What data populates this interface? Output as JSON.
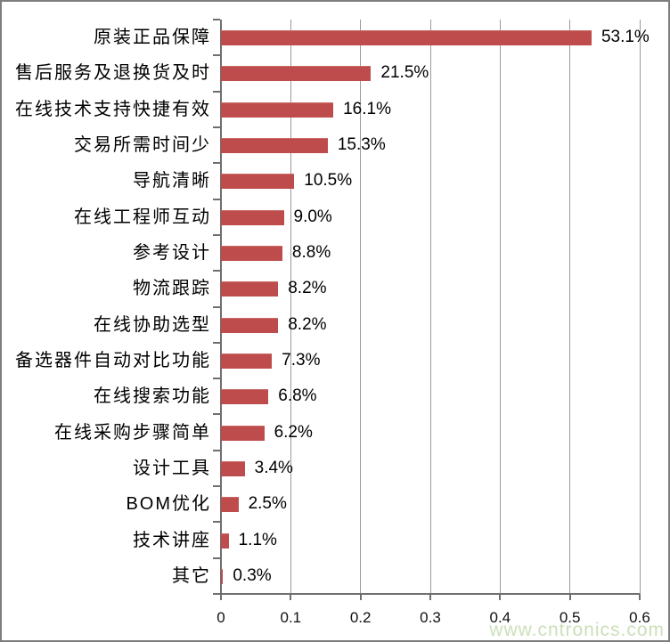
{
  "watermark": "www.cntronics.com",
  "chart_data": {
    "type": "bar",
    "orientation": "horizontal",
    "title": "",
    "xlabel": "",
    "ylabel": "",
    "categories": [
      "原装正品保障",
      "售后服务及退换货及时",
      "在线技术支持快捷有效",
      "交易所需时间少",
      "导航清晰",
      "在线工程师互动",
      "参考设计",
      "物流跟踪",
      "在线协助选型",
      "备选器件自动对比功能",
      "在线搜索功能",
      "在线采购步骤简单",
      "设计工具",
      "BOM优化",
      "技术讲座",
      "其它"
    ],
    "values": [
      0.531,
      0.215,
      0.161,
      0.153,
      0.105,
      0.09,
      0.088,
      0.082,
      0.082,
      0.073,
      0.068,
      0.062,
      0.034,
      0.025,
      0.011,
      0.003
    ],
    "value_labels": [
      "53.1%",
      "21.5%",
      "16.1%",
      "15.3%",
      "10.5%",
      "9.0%",
      "8.8%",
      "8.2%",
      "8.2%",
      "7.3%",
      "6.8%",
      "6.2%",
      "3.4%",
      "2.5%",
      "1.1%",
      "0.3%"
    ],
    "xlim": [
      0,
      0.6
    ],
    "x_ticks": [
      "0",
      "0.1",
      "0.2",
      "0.3",
      "0.4",
      "0.5",
      "0.6"
    ],
    "grid": true,
    "legend": false,
    "bar_color": "#bf4c4c",
    "axis_color": "#6f6f6f",
    "gridline_color": "#9a9a9a",
    "watermark_color": "#cbe0ba"
  }
}
